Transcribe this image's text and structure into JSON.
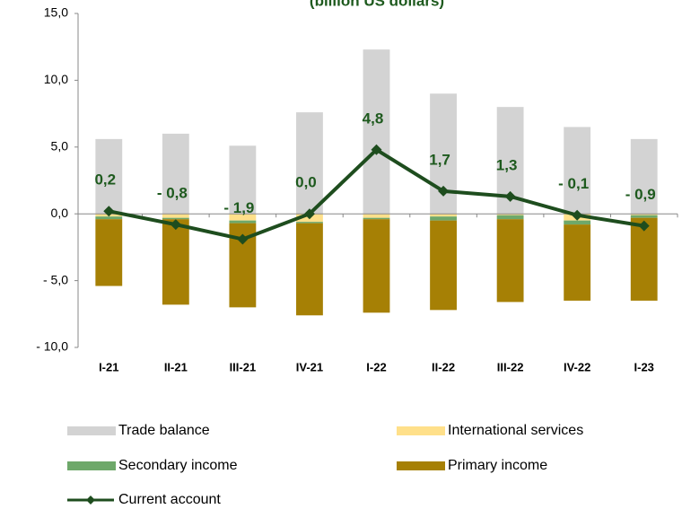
{
  "chart_data": {
    "type": "bar",
    "stacked": true,
    "title": "(billion US dollars)",
    "categories": [
      "I-21",
      "II-21",
      "III-21",
      "IV-21",
      "I-22",
      "II-22",
      "III-22",
      "IV-22",
      "I-23"
    ],
    "ylim": [
      -10,
      15
    ],
    "yticks": [
      {
        "value": -10,
        "label": "- 10,0"
      },
      {
        "value": -5,
        "label": "- 5,0"
      },
      {
        "value": 0,
        "label": "0,0"
      },
      {
        "value": 5,
        "label": "5,0"
      },
      {
        "value": 10,
        "label": "10,0"
      },
      {
        "value": 15,
        "label": "15,0"
      }
    ],
    "series": [
      {
        "name": "Trade balance",
        "color": "#d3d3d3",
        "values": [
          5.6,
          6.0,
          5.1,
          7.6,
          12.3,
          9.0,
          8.0,
          6.5,
          5.6
        ]
      },
      {
        "name": "International services",
        "color": "#ffe08a",
        "values": [
          -0.2,
          -0.3,
          -0.5,
          -0.6,
          -0.3,
          -0.2,
          -0.1,
          -0.5,
          -0.1
        ]
      },
      {
        "name": "Secondary income",
        "color": "#6ea86a",
        "values": [
          -0.2,
          -0.1,
          -0.2,
          -0.1,
          -0.1,
          -0.3,
          -0.3,
          -0.3,
          -0.2
        ]
      },
      {
        "name": "Primary income",
        "color": "#a68005",
        "values": [
          -5.0,
          -6.4,
          -6.3,
          -6.9,
          -7.0,
          -6.7,
          -6.2,
          -5.7,
          -6.2
        ]
      },
      {
        "name": "Current account",
        "type": "line",
        "color": "#1e4d1e",
        "values": [
          0.2,
          -0.8,
          -1.9,
          0.0,
          4.8,
          1.7,
          1.3,
          -0.1,
          -0.9
        ],
        "value_labels": [
          "0,2",
          "- 0,8",
          "- 1,9",
          "0,0",
          "4,8",
          "1,7",
          "1,3",
          "- 0,1",
          "- 0,9"
        ]
      }
    ]
  }
}
